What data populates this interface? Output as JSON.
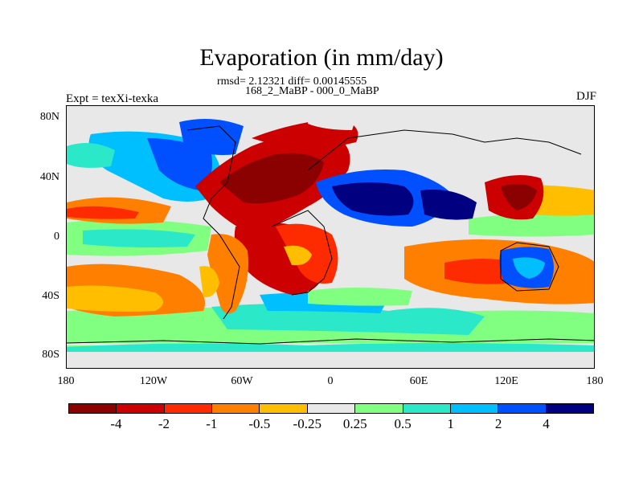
{
  "title": "Evaporation (in mm/day)",
  "stats": "rmsd= 2.12321 diff= 0.00145555",
  "subtitle": "168_2_MaBP - 000_0_MaBP",
  "expt_label": "Expt = texXi-texka",
  "season": "DJF",
  "y_axis_ticks": [
    "80N",
    "40N",
    "0",
    "40S",
    "80S"
  ],
  "x_axis_ticks": [
    "180",
    "120W",
    "60W",
    "0",
    "60E",
    "120E",
    "180"
  ],
  "colorbar": {
    "colors": [
      "#8b0000",
      "#cc0000",
      "#ff2b00",
      "#ff8000",
      "#ffbf00",
      "#e8e8e8",
      "#80ff80",
      "#2ae8c8",
      "#00bfff",
      "#0050ff",
      "#000080"
    ],
    "labels": [
      "-4",
      "-2",
      "-1",
      "-0.5",
      "-0.25",
      "0.25",
      "0.5",
      "1",
      "2",
      "4"
    ]
  }
}
